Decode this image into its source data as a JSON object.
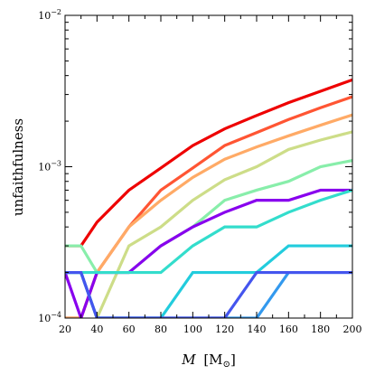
{
  "chart_data": {
    "type": "line",
    "title": "",
    "xlabel": "M [M☉]",
    "xlabel_text": "M",
    "xlabel_unit": "[M",
    "xlabel_sub": "⊙",
    "xlabel_close": "]",
    "ylabel": "unfaithfulness",
    "xlim": [
      20,
      200
    ],
    "ylim": [
      0.0001,
      0.01
    ],
    "yscale": "log",
    "grid": false,
    "legend": "none",
    "x_ticks": [
      20,
      40,
      60,
      80,
      100,
      120,
      140,
      160,
      180,
      200
    ],
    "x_tick_labels": [
      "20",
      "40",
      "60",
      "80",
      "100",
      "120",
      "140",
      "160",
      "180",
      "200"
    ],
    "y_major_ticks": [
      0.0001,
      0.001,
      0.01
    ],
    "y_tick_labels": [
      {
        "base": "10",
        "exp": "−4"
      },
      {
        "base": "10",
        "exp": "−3"
      },
      {
        "base": "10",
        "exp": "−2"
      }
    ],
    "x": [
      20,
      30,
      40,
      60,
      80,
      100,
      120,
      140,
      160,
      180,
      200
    ],
    "series": [
      {
        "color": "#ee0000",
        "values": [
          0.0003,
          0.0003,
          0.00043,
          0.0007,
          0.00098,
          0.00138,
          0.00178,
          0.00218,
          0.00265,
          0.00315,
          0.00375
        ]
      },
      {
        "color": "#ff5533",
        "values": [
          0.0001,
          0.0001,
          0.0002,
          0.0004,
          0.0007,
          0.00098,
          0.00138,
          0.00168,
          0.00205,
          0.00245,
          0.0029
        ]
      },
      {
        "color": "#ffaa66",
        "values": [
          0.0001,
          0.0001,
          0.0002,
          0.0004,
          0.0006,
          0.00085,
          0.00112,
          0.00135,
          0.0016,
          0.00188,
          0.0022
        ]
      },
      {
        "color": "#cddd88",
        "values": [
          0.0002,
          0.0002,
          0.0001,
          0.0003,
          0.0004,
          0.0006,
          0.00082,
          0.001,
          0.0013,
          0.0015,
          0.0017
        ]
      },
      {
        "color": "#88eeaa",
        "values": [
          0.0003,
          0.0003,
          0.0002,
          0.0002,
          0.0003,
          0.0004,
          0.0006,
          0.0007,
          0.0008,
          0.001,
          0.0011
        ]
      },
      {
        "color": "#8800ee",
        "values": [
          0.0002,
          0.0001,
          0.0002,
          0.0002,
          0.0003,
          0.0004,
          0.0005,
          0.0006,
          0.0006,
          0.0007,
          0.0007
        ]
      },
      {
        "color": "#33ddcc",
        "values": [
          0.0002,
          0.0002,
          0.0002,
          0.0002,
          0.0002,
          0.0003,
          0.0004,
          0.0004,
          0.0005,
          0.0006,
          0.0007
        ]
      },
      {
        "color": "#22ccdd",
        "values": [
          0.0002,
          0.0002,
          0.0001,
          0.0001,
          0.0001,
          0.0002,
          0.0002,
          0.0002,
          0.0003,
          0.0003,
          0.0003
        ]
      },
      {
        "color": "#3399ee",
        "values": [
          0.0002,
          0.0002,
          0.0001,
          0.0001,
          0.0001,
          0.0001,
          0.0001,
          0.0001,
          0.0002,
          0.0002,
          0.0002
        ]
      },
      {
        "color": "#4455ee",
        "values": [
          0.0002,
          0.0002,
          0.0001,
          0.0001,
          0.0001,
          0.0001,
          0.0001,
          0.0002,
          0.0002,
          0.0002,
          0.0002
        ]
      }
    ]
  }
}
